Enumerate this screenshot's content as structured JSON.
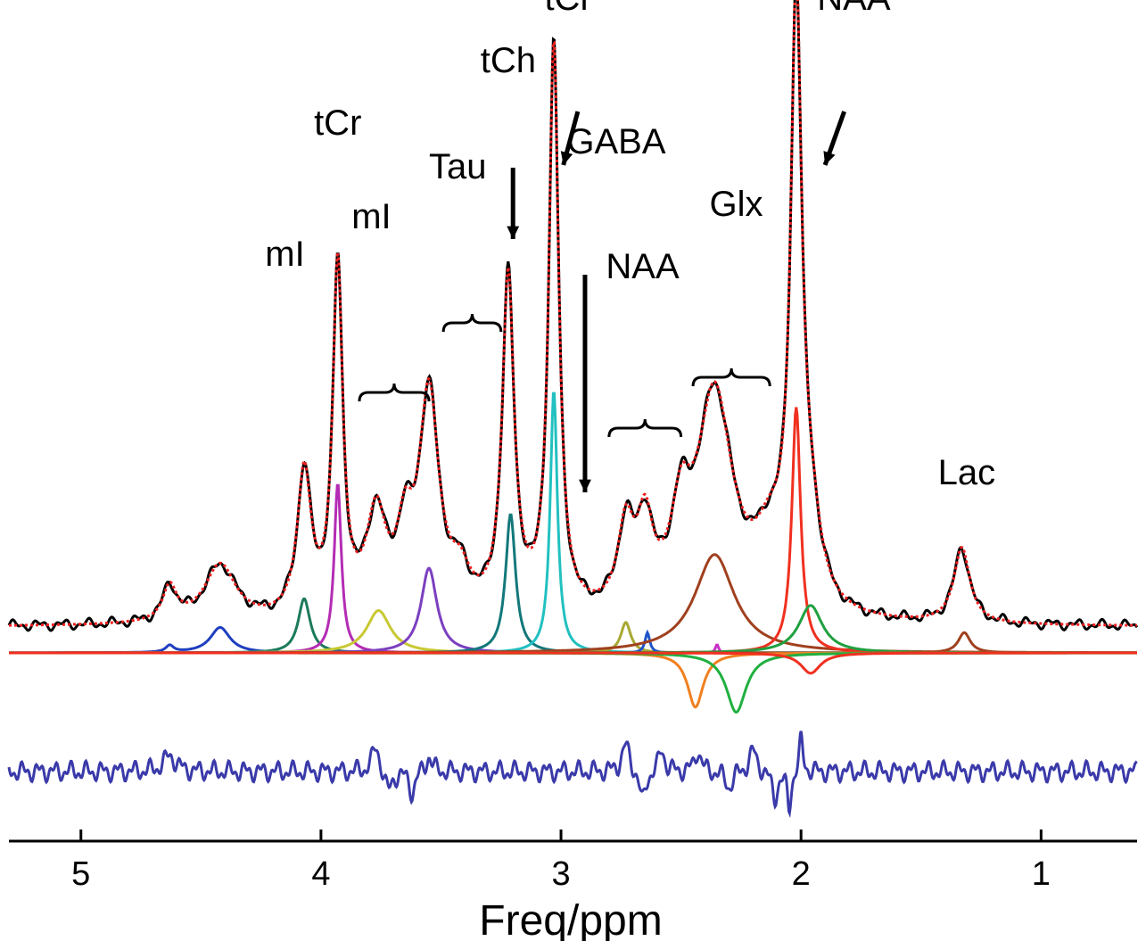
{
  "chart_data": {
    "type": "line",
    "xlabel": "Freq/ppm",
    "ylabel": "",
    "title": "",
    "x_reversed": true,
    "xlim": [
      5.3,
      0.6
    ],
    "xticks": [
      5,
      4,
      3,
      2,
      1
    ],
    "grid": false,
    "legend": "none",
    "peak_labels": [
      {
        "text": "tCr",
        "ppm": 3.93,
        "level": 0.83
      },
      {
        "text": "mI",
        "ppm": 4.15,
        "level": 0.62
      },
      {
        "text": "mI",
        "ppm": 3.79,
        "level": 0.68
      },
      {
        "text": "Tau",
        "ppm": 3.43,
        "level": 0.76
      },
      {
        "text": "tCh",
        "ppm": 3.22,
        "level": 0.93
      },
      {
        "text": "tCr",
        "ppm": 2.97,
        "level": 1.03
      },
      {
        "text": "GABA",
        "ppm": 2.77,
        "level": 0.8
      },
      {
        "text": "Glx",
        "ppm": 2.27,
        "level": 0.7
      },
      {
        "text": "NAA",
        "ppm": 2.66,
        "level": 0.6
      },
      {
        "text": "NAA",
        "ppm": 1.78,
        "level": 1.03
      },
      {
        "text": "Lac",
        "ppm": 1.31,
        "level": 0.27
      }
    ],
    "total_peaks": [
      {
        "ppm": 4.63,
        "amp": 0.06,
        "w": 0.035
      },
      {
        "ppm": 4.42,
        "amp": 0.1,
        "w": 0.08
      },
      {
        "ppm": 4.07,
        "amp": 0.25,
        "w": 0.035
      },
      {
        "ppm": 3.93,
        "amp": 0.6,
        "w": 0.025
      },
      {
        "ppm": 3.77,
        "amp": 0.17,
        "w": 0.05
      },
      {
        "ppm": 3.65,
        "amp": 0.12,
        "w": 0.04
      },
      {
        "ppm": 3.55,
        "amp": 0.38,
        "w": 0.05
      },
      {
        "ppm": 3.42,
        "amp": 0.06,
        "w": 0.05
      },
      {
        "ppm": 3.22,
        "amp": 0.58,
        "w": 0.03
      },
      {
        "ppm": 3.03,
        "amp": 0.98,
        "w": 0.025
      },
      {
        "ppm": 2.73,
        "amp": 0.14,
        "w": 0.04
      },
      {
        "ppm": 2.65,
        "amp": 0.14,
        "w": 0.04
      },
      {
        "ppm": 2.5,
        "amp": 0.14,
        "w": 0.05
      },
      {
        "ppm": 2.36,
        "amp": 0.38,
        "w": 0.09
      },
      {
        "ppm": 2.13,
        "amp": 0.1,
        "w": 0.08
      },
      {
        "ppm": 2.02,
        "amp": 1.02,
        "w": 0.028
      },
      {
        "ppm": 1.96,
        "amp": 0.12,
        "w": 0.05
      },
      {
        "ppm": 1.33,
        "amp": 0.13,
        "w": 0.04
      }
    ],
    "components": [
      {
        "color": "#1f3fbf",
        "peaks": [
          {
            "ppm": 4.42,
            "amp": 0.15,
            "w": 0.05
          },
          {
            "ppm": 4.63,
            "amp": 0.04,
            "w": 0.02
          }
        ]
      },
      {
        "color": "#1b7a5a",
        "peaks": [
          {
            "ppm": 4.07,
            "amp": 0.32,
            "w": 0.03
          }
        ]
      },
      {
        "color": "#b42cb4",
        "peaks": [
          {
            "ppm": 3.93,
            "amp": 1.0,
            "w": 0.018
          }
        ]
      },
      {
        "color": "#c8c832",
        "peaks": [
          {
            "ppm": 3.76,
            "amp": 0.25,
            "w": 0.06
          }
        ]
      },
      {
        "color": "#7b3fc0",
        "peaks": [
          {
            "ppm": 3.55,
            "amp": 0.5,
            "w": 0.04
          }
        ]
      },
      {
        "color": "#13787a",
        "peaks": [
          {
            "ppm": 3.21,
            "amp": 0.82,
            "w": 0.025
          }
        ]
      },
      {
        "color": "#22c0c0",
        "peaks": [
          {
            "ppm": 3.03,
            "amp": 1.55,
            "w": 0.018
          }
        ]
      },
      {
        "color": "#a8a832",
        "peaks": [
          {
            "ppm": 2.73,
            "amp": 0.18,
            "w": 0.025
          }
        ]
      },
      {
        "color": "#1f55c8",
        "peaks": [
          {
            "ppm": 2.64,
            "amp": 0.12,
            "w": 0.012
          }
        ]
      },
      {
        "color": "#c832c8",
        "peaks": [
          {
            "ppm": 2.35,
            "amp": 0.05,
            "w": 0.008
          }
        ]
      },
      {
        "color": "#a0401e",
        "peaks": [
          {
            "ppm": 2.36,
            "amp": 0.58,
            "w": 0.1
          }
        ]
      },
      {
        "color": "#f03020",
        "peaks": [
          {
            "ppm": 2.02,
            "amp": 1.45,
            "w": 0.022
          }
        ]
      },
      {
        "color": "#20a040",
        "peaks": [
          {
            "ppm": 1.96,
            "amp": 0.28,
            "w": 0.06
          }
        ]
      },
      {
        "color": "#a0401e",
        "peaks": [
          {
            "ppm": 1.32,
            "amp": 0.12,
            "w": 0.03
          }
        ]
      }
    ],
    "negative_components": [
      {
        "color": "#f08020",
        "peaks": [
          {
            "ppm": 2.44,
            "amp": -0.32,
            "w": 0.04
          }
        ]
      },
      {
        "color": "#20b040",
        "peaks": [
          {
            "ppm": 2.27,
            "amp": -0.35,
            "w": 0.05
          }
        ]
      },
      {
        "color": "#f03020",
        "peaks": [
          {
            "ppm": 1.96,
            "amp": -0.12,
            "w": 0.05
          }
        ]
      }
    ],
    "residual_peaks": [
      {
        "ppm": 4.63,
        "amp": 0.03,
        "w": 0.03
      },
      {
        "ppm": 3.77,
        "amp": 0.05,
        "w": 0.02
      },
      {
        "ppm": 3.72,
        "amp": -0.04,
        "w": 0.02
      },
      {
        "ppm": 3.62,
        "amp": -0.04,
        "w": 0.015
      },
      {
        "ppm": 3.55,
        "amp": 0.03,
        "w": 0.015
      },
      {
        "ppm": 2.73,
        "amp": 0.05,
        "w": 0.02
      },
      {
        "ppm": 2.66,
        "amp": -0.06,
        "w": 0.015
      },
      {
        "ppm": 2.58,
        "amp": 0.04,
        "w": 0.015
      },
      {
        "ppm": 2.43,
        "amp": 0.04,
        "w": 0.015
      },
      {
        "ppm": 2.3,
        "amp": -0.03,
        "w": 0.02
      },
      {
        "ppm": 2.2,
        "amp": 0.04,
        "w": 0.02
      },
      {
        "ppm": 2.11,
        "amp": -0.05,
        "w": 0.015
      },
      {
        "ppm": 2.05,
        "amp": -0.07,
        "w": 0.01
      },
      {
        "ppm": 2.0,
        "amp": 0.06,
        "w": 0.01
      }
    ]
  }
}
